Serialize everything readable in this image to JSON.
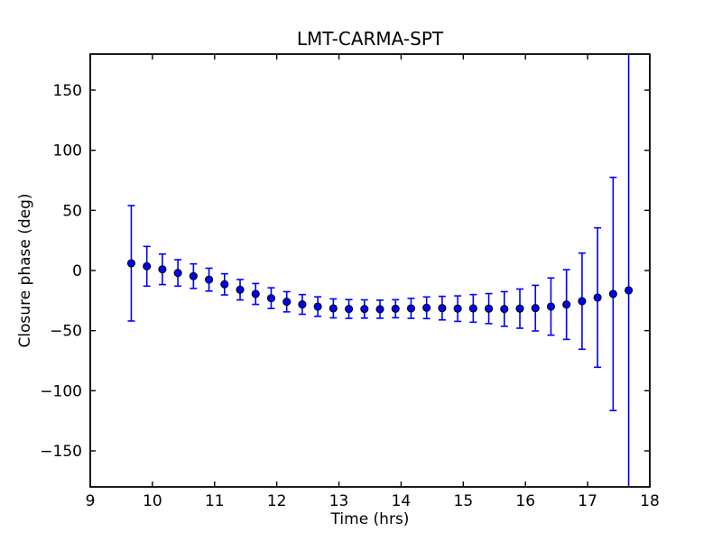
{
  "chart_data": {
    "type": "scatter",
    "title": "LMT-CARMA-SPT",
    "xlabel": "Time (hrs)",
    "ylabel": "Closure phase (deg)",
    "xlim": [
      9,
      18
    ],
    "ylim": [
      -180,
      180
    ],
    "xticks": [
      9,
      10,
      11,
      12,
      13,
      14,
      15,
      16,
      17,
      18
    ],
    "yticks": [
      -150,
      -100,
      -50,
      0,
      50,
      100,
      150
    ],
    "grid": false,
    "legend_position": "none",
    "colors": {
      "marker_fill": "#0000ff",
      "marker_edge": "#000000",
      "errorbar": "#0000ff",
      "axis": "#000000",
      "background": "#ffffff"
    },
    "series": [
      {
        "name": "closure phase",
        "marker": "circle",
        "x": [
          9.66,
          9.91,
          10.16,
          10.41,
          10.66,
          10.91,
          11.16,
          11.41,
          11.66,
          11.91,
          12.16,
          12.41,
          12.66,
          12.91,
          13.16,
          13.41,
          13.66,
          13.91,
          14.16,
          14.41,
          14.66,
          14.91,
          15.16,
          15.41,
          15.66,
          15.91,
          16.16,
          16.41,
          16.66,
          16.91,
          17.16,
          17.41,
          17.66
        ],
        "y": [
          6.0,
          3.5,
          1.0,
          -2.0,
          -4.7,
          -7.6,
          -11.5,
          -16.0,
          -19.5,
          -23.0,
          -26.0,
          -28.2,
          -30.0,
          -31.5,
          -32.0,
          -32.0,
          -32.2,
          -31.8,
          -31.5,
          -31.0,
          -31.3,
          -31.7,
          -31.5,
          -31.7,
          -32.0,
          -31.7,
          -31.3,
          -30.0,
          -28.3,
          -25.5,
          -22.5,
          -19.5,
          -16.5
        ],
        "yerr": [
          48,
          16.5,
          12.7,
          11,
          10.2,
          9.5,
          8.8,
          8.5,
          8.7,
          8.6,
          8.4,
          8.2,
          8.1,
          7.9,
          7.8,
          7.6,
          7.5,
          7.5,
          8.3,
          9,
          9.8,
          10.6,
          11.5,
          12.5,
          14.4,
          16.3,
          19,
          23.8,
          29,
          40,
          58,
          97,
          200
        ]
      }
    ]
  }
}
